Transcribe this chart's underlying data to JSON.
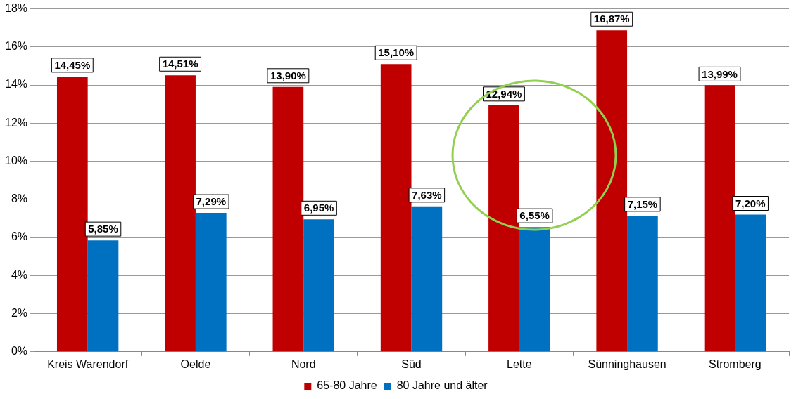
{
  "chart_data": {
    "type": "bar",
    "categories": [
      "Kreis Warendorf",
      "Oelde",
      "Nord",
      "Süd",
      "Lette",
      "Sünninghausen",
      "Stromberg"
    ],
    "series": [
      {
        "name": "65-80 Jahre",
        "color": "#c00000",
        "values": [
          14.45,
          14.51,
          13.9,
          15.1,
          12.94,
          16.87,
          13.99
        ],
        "value_labels": [
          "14,45%",
          "14,51%",
          "13,90%",
          "15,10%",
          "12,94%",
          "16,87%",
          "13,99%"
        ]
      },
      {
        "name": "80 Jahre und älter",
        "color": "#0070c0",
        "values": [
          5.85,
          7.29,
          6.95,
          7.63,
          6.55,
          7.15,
          7.2
        ],
        "value_labels": [
          "5,85%",
          "7,29%",
          "6,95%",
          "7,63%",
          "6,55%",
          "7,15%",
          "7,20%"
        ]
      }
    ],
    "ylim": [
      0,
      18
    ],
    "yticks": [
      {
        "value": 0,
        "label": "0%"
      },
      {
        "value": 2,
        "label": "2%"
      },
      {
        "value": 4,
        "label": "4%"
      },
      {
        "value": 6,
        "label": "6%"
      },
      {
        "value": 8,
        "label": "8%"
      },
      {
        "value": 10,
        "label": "10%"
      },
      {
        "value": 12,
        "label": "12%"
      },
      {
        "value": 14,
        "label": "14%"
      },
      {
        "value": 16,
        "label": "16%"
      },
      {
        "value": 18,
        "label": "18%"
      }
    ],
    "grid": "y",
    "legend": "bottom"
  }
}
